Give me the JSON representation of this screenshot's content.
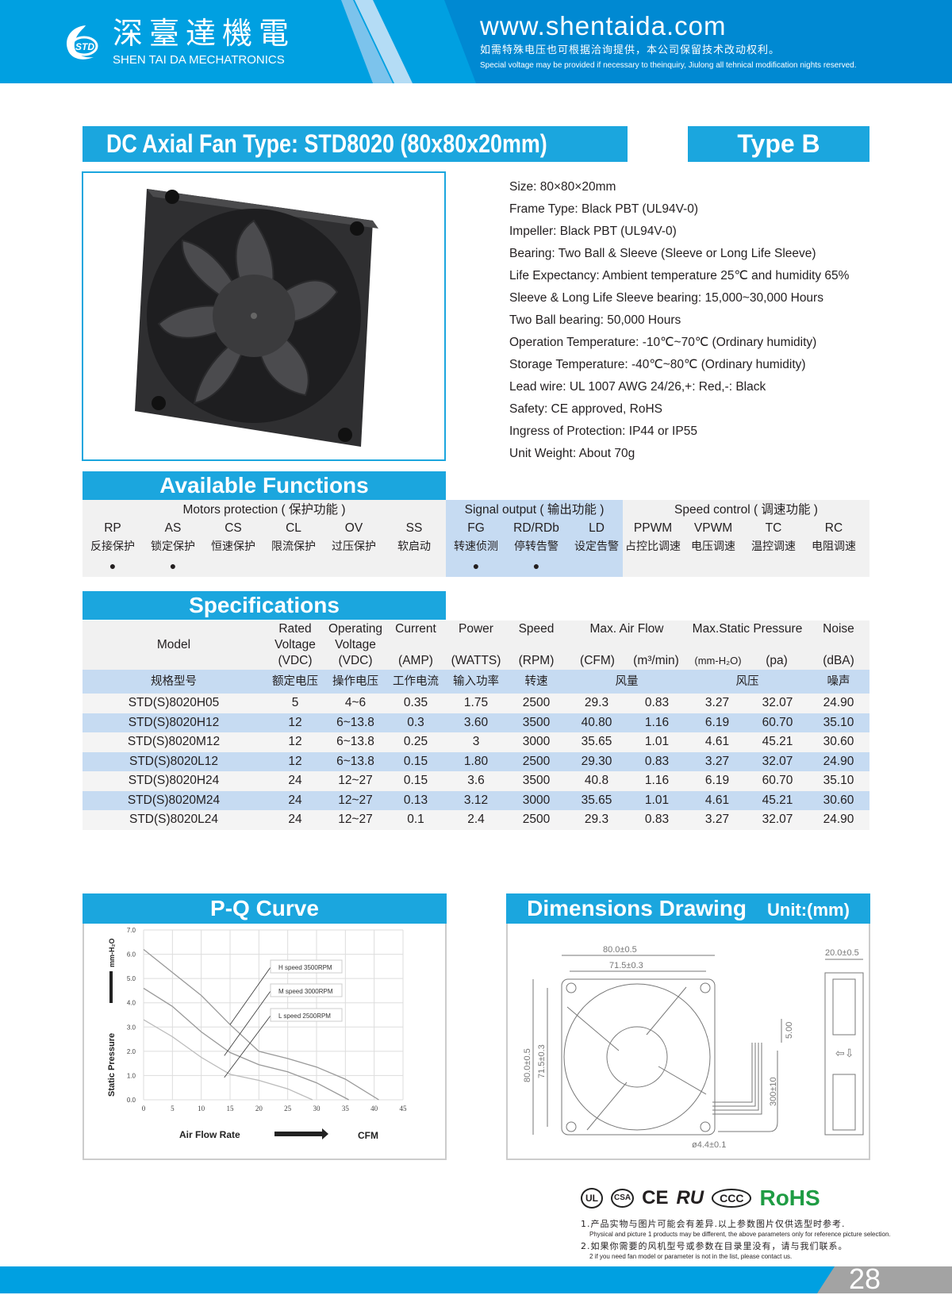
{
  "header": {
    "brand_cn": "深臺達機電",
    "brand_en": "SHEN TAI DA MECHATRONICS",
    "logo_text": "STD",
    "url": "www.shentaida.com",
    "note_cn": "如需特殊电压也可根据洽询提供，本公司保留技术改动权利。",
    "note_en": "Special voltage may be provided if necessary to theinquiry, Jiulong all tehnical modification nights reserved.",
    "colors": {
      "primary": "#00a0e1",
      "dark": "#0089d2"
    }
  },
  "title": {
    "main": "DC Axial Fan  Type: STD8020 (80x80x20mm)",
    "type": "Type  B"
  },
  "specs_list": [
    "Size: 80×80×20mm",
    "Frame Type: Black PBT (UL94V-0)",
    "Impeller: Black PBT (UL94V-0)",
    "Bearing: Two Ball & Sleeve (Sleeve or Long Life Sleeve)",
    "Life Expectancy: Ambient temperature 25℃ and humidity 65%",
    "Sleeve & Long Life Sleeve bearing: 15,000~30,000 Hours",
    "Two Ball bearing: 50,000 Hours",
    "Operation Temperature: -10℃~70℃ (Ordinary humidity)",
    "Storage Temperature: -40℃~80℃ (Ordinary humidity)",
    "Lead wire: UL 1007 AWG 24/26,+: Red,-: Black",
    "Safety: CE approved, RoHS",
    "Ingress of Protection: IP44 or IP55",
    "Unit Weight: About 70g"
  ],
  "functions": {
    "title": "Available Functions",
    "groups": [
      {
        "label": "Motors protection ( 保护功能 )",
        "items": [
          {
            "code": "RP",
            "cn": "反接保护",
            "on": true
          },
          {
            "code": "AS",
            "cn": "锁定保护",
            "on": true
          },
          {
            "code": "CS",
            "cn": "恒速保护",
            "on": false
          },
          {
            "code": "CL",
            "cn": "限流保护",
            "on": false
          },
          {
            "code": "OV",
            "cn": "过压保护",
            "on": false
          },
          {
            "code": "SS",
            "cn": "软启动",
            "on": false
          }
        ]
      },
      {
        "label": "Signal output ( 输出功能 )",
        "items": [
          {
            "code": "FG",
            "cn": "转速侦测",
            "on": true
          },
          {
            "code": "RD/RDb",
            "cn": "停转告警",
            "on": true
          },
          {
            "code": "LD",
            "cn": "设定告警",
            "on": false
          }
        ]
      },
      {
        "label": "Speed control ( 调速功能 )",
        "items": [
          {
            "code": "PPWM",
            "cn": "占控比调速",
            "on": false
          },
          {
            "code": "VPWM",
            "cn": "电压调速",
            "on": false
          },
          {
            "code": "TC",
            "cn": "温控调速",
            "on": false
          },
          {
            "code": "RC",
            "cn": "电阻调速",
            "on": false
          }
        ]
      }
    ],
    "bullet": "●"
  },
  "specifications": {
    "title": "Specifications",
    "header_en": [
      [
        "Model",
        ""
      ],
      [
        "Rated Voltage (VDC)",
        ""
      ],
      [
        "Operating Voltage (VDC)",
        ""
      ],
      [
        "Current",
        "(AMP)"
      ],
      [
        "Power",
        "(WATTS)"
      ],
      [
        "Speed",
        "(RPM)"
      ],
      [
        "Max. Air Flow",
        ""
      ],
      [
        "Max.Static Pressure",
        ""
      ],
      [
        "Noise",
        "(dBA)"
      ]
    ],
    "units": {
      "cfm": "(CFM)",
      "m3": "(m³/min)",
      "mmh2o": "(mm-H₂O)",
      "pa": "(pa)"
    },
    "header_cn": [
      "规格型号",
      "额定电压",
      "操作电压",
      "工作电流",
      "输入功率",
      "转速",
      "风量",
      "风压",
      "噪声"
    ],
    "rows": [
      [
        "STD(S)8020H05",
        "5",
        "4~6",
        "0.35",
        "1.75",
        "2500",
        "29.3",
        "0.83",
        "3.27",
        "32.07",
        "24.90"
      ],
      [
        "STD(S)8020H12",
        "12",
        "6~13.8",
        "0.3",
        "3.60",
        "3500",
        "40.80",
        "1.16",
        "6.19",
        "60.70",
        "35.10"
      ],
      [
        "STD(S)8020M12",
        "12",
        "6~13.8",
        "0.25",
        "3",
        "3000",
        "35.65",
        "1.01",
        "4.61",
        "45.21",
        "30.60"
      ],
      [
        "STD(S)8020L12",
        "12",
        "6~13.8",
        "0.15",
        "1.80",
        "2500",
        "29.30",
        "0.83",
        "3.27",
        "32.07",
        "24.90"
      ],
      [
        "STD(S)8020H24",
        "24",
        "12~27",
        "0.15",
        "3.6",
        "3500",
        "40.8",
        "1.16",
        "6.19",
        "60.70",
        "35.10"
      ],
      [
        "STD(S)8020M24",
        "24",
        "12~27",
        "0.13",
        "3.12",
        "3000",
        "35.65",
        "1.01",
        "4.61",
        "45.21",
        "30.60"
      ],
      [
        "STD(S)8020L24",
        "24",
        "12~27",
        "0.1",
        "2.4",
        "2500",
        "29.3",
        "0.83",
        "3.27",
        "32.07",
        "24.90"
      ]
    ]
  },
  "pq_curve": {
    "title": "P-Q Curve"
  },
  "chart_data": {
    "type": "line",
    "xlabel": "Air   Flow   Rate",
    "xunit": "CFM",
    "ylabel": "Static   Pressure",
    "yunit": "mm-H₂O",
    "xlim": [
      0,
      45
    ],
    "ylim": [
      0,
      7
    ],
    "grid": true,
    "xticks": [
      "0",
      "5",
      "10",
      "15",
      "20",
      "25",
      "30",
      "35",
      "40",
      "45"
    ],
    "yticks": [
      "0.0",
      "1.0",
      "2.0",
      "3.0",
      "4.0",
      "5.0",
      "6.0",
      "7.0"
    ],
    "series": [
      {
        "name": "H  speed  3500RPM",
        "points": [
          [
            0,
            6.2
          ],
          [
            5,
            5.25
          ],
          [
            10,
            4.3
          ],
          [
            15,
            3.1
          ],
          [
            20,
            2.0
          ],
          [
            25,
            1.7
          ],
          [
            30,
            1.35
          ],
          [
            35,
            0.85
          ],
          [
            40.8,
            0
          ]
        ]
      },
      {
        "name": "M  speed  3000RPM",
        "points": [
          [
            0,
            4.6
          ],
          [
            5,
            3.85
          ],
          [
            10,
            2.8
          ],
          [
            15,
            1.95
          ],
          [
            20,
            1.45
          ],
          [
            25,
            1.15
          ],
          [
            30,
            0.7
          ],
          [
            35.6,
            0
          ]
        ]
      },
      {
        "name": "L  speed  2500RPM",
        "points": [
          [
            0,
            3.3
          ],
          [
            5,
            2.6
          ],
          [
            10,
            1.75
          ],
          [
            15,
            1.05
          ],
          [
            20,
            0.8
          ],
          [
            25,
            0.45
          ],
          [
            29.3,
            0
          ]
        ]
      }
    ]
  },
  "dimensions": {
    "title": "Dimensions Drawing",
    "unit": "Unit:(mm)",
    "labels": {
      "outer": "80.0±0.5",
      "inner": "71.5±0.3",
      "depth": "20.0±0.5",
      "wire_strip": "5.00",
      "wire_len": "300±10",
      "hole": "ø4.4±0.1"
    }
  },
  "certs": {
    "items": [
      "UL",
      "CSA",
      "CE",
      "RU",
      "CCC"
    ],
    "rohs": "RoHS"
  },
  "notes": [
    {
      "cn": "1.产品实物与图片可能会有差异.以上参数图片仅供选型时参考.",
      "en": "Physical and picture 1 products may be different, the above parameters only for reference picture selection."
    },
    {
      "cn": "2.如果你需要的风机型号或参数在目录里没有，请与我们联系。",
      "en": "2 if you need fan model or parameter is not in the list, please contact us."
    }
  ],
  "page_number": "28"
}
